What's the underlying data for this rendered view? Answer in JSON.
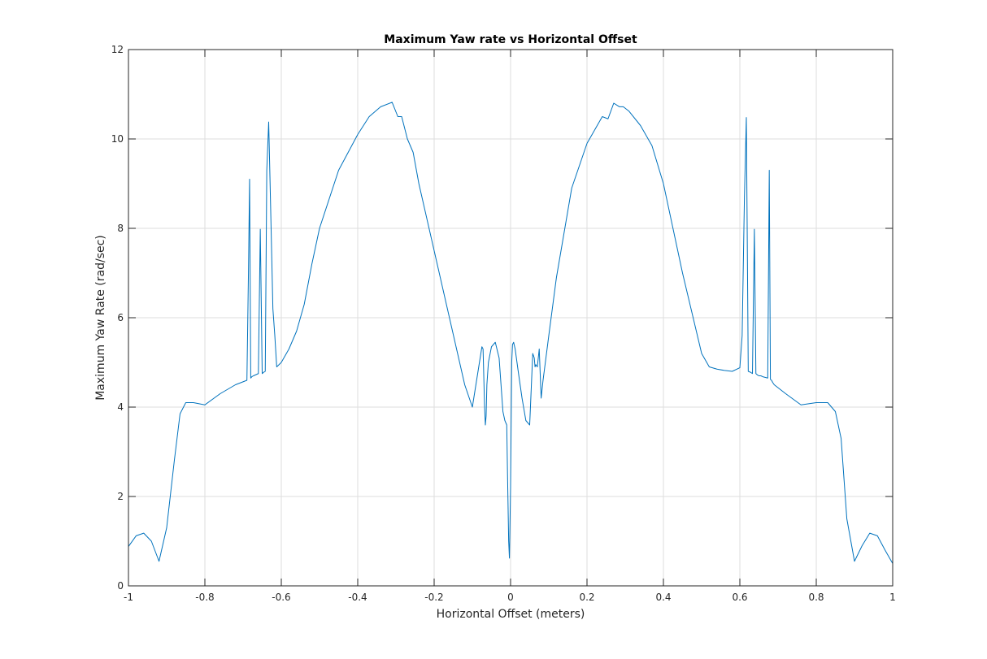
{
  "chart_data": {
    "type": "line",
    "title": "Maximum Yaw rate vs Horizontal Offset",
    "xlabel": "Horizontal Offset (meters)",
    "ylabel": "Maximum Yaw Rate (rad/sec)",
    "xlim": [
      -1,
      1
    ],
    "ylim": [
      0,
      12
    ],
    "xticks": [
      -1,
      -0.8,
      -0.6,
      -0.4,
      -0.2,
      0,
      0.2,
      0.4,
      0.6,
      0.8,
      1
    ],
    "xtick_labels": [
      "-1",
      "-0.8",
      "-0.6",
      "-0.4",
      "-0.2",
      "0",
      "0.2",
      "0.4",
      "0.6",
      "0.8",
      "1"
    ],
    "yticks": [
      0,
      2,
      4,
      6,
      8,
      10,
      12
    ],
    "ytick_labels": [
      "0",
      "2",
      "4",
      "6",
      "8",
      "10",
      "12"
    ],
    "grid": true,
    "line_color": "#0072bd",
    "series": [
      {
        "x": [
          -1.0,
          -0.98,
          -0.96,
          -0.94,
          -0.92,
          -0.9,
          -0.88,
          -0.865,
          -0.85,
          -0.83,
          -0.8,
          -0.76,
          -0.72,
          -0.69,
          -0.686,
          -0.683,
          -0.68,
          -0.677,
          -0.673,
          -0.66,
          -0.655,
          -0.65,
          -0.646,
          -0.642,
          -0.638,
          -0.633,
          -0.628,
          -0.622,
          -0.617,
          -0.612,
          -0.606,
          -0.6,
          -0.58,
          -0.56,
          -0.54,
          -0.52,
          -0.5,
          -0.45,
          -0.4,
          -0.37,
          -0.34,
          -0.31,
          -0.295,
          -0.285,
          -0.27,
          -0.255,
          -0.24,
          -0.2,
          -0.16,
          -0.12,
          -0.1,
          -0.075,
          -0.072,
          -0.068,
          -0.066,
          -0.064,
          -0.062,
          -0.058,
          -0.05,
          -0.04,
          -0.03,
          -0.02,
          -0.015,
          -0.01,
          -0.008,
          -0.005,
          -0.003,
          0.0,
          0.003,
          0.005,
          0.008,
          0.012,
          0.02,
          0.03,
          0.04,
          0.05,
          0.058,
          0.062,
          0.064,
          0.066,
          0.07,
          0.075,
          0.08,
          0.085,
          0.1,
          0.12,
          0.16,
          0.2,
          0.24,
          0.255,
          0.27,
          0.285,
          0.295,
          0.31,
          0.34,
          0.37,
          0.4,
          0.45,
          0.5,
          0.52,
          0.54,
          0.56,
          0.58,
          0.6,
          0.606,
          0.612,
          0.617,
          0.622,
          0.628,
          0.633,
          0.638,
          0.642,
          0.646,
          0.65,
          0.655,
          0.66,
          0.673,
          0.677,
          0.68,
          0.683,
          0.686,
          0.69,
          0.72,
          0.76,
          0.8,
          0.83,
          0.85,
          0.865,
          0.88,
          0.9,
          0.92,
          0.94,
          0.96,
          0.98,
          1.0
        ],
        "y": [
          0.88,
          1.12,
          1.18,
          1.0,
          0.55,
          1.3,
          2.8,
          3.85,
          4.1,
          4.1,
          4.05,
          4.3,
          4.5,
          4.6,
          7.0,
          9.1,
          4.65,
          4.68,
          4.7,
          4.75,
          7.98,
          4.75,
          4.78,
          4.8,
          9.3,
          10.38,
          8.5,
          6.2,
          5.6,
          4.9,
          4.95,
          5.0,
          5.3,
          5.7,
          6.3,
          7.2,
          8.0,
          9.3,
          10.1,
          10.5,
          10.72,
          10.82,
          10.5,
          10.5,
          10.0,
          9.7,
          9.0,
          7.5,
          6.0,
          4.5,
          4.0,
          5.35,
          5.3,
          4.0,
          3.6,
          3.8,
          4.5,
          5.0,
          5.35,
          5.45,
          5.1,
          3.9,
          3.7,
          3.6,
          2.5,
          1.0,
          0.62,
          2.2,
          5.0,
          5.4,
          5.45,
          5.3,
          4.8,
          4.2,
          3.7,
          3.6,
          5.2,
          5.1,
          4.9,
          4.95,
          4.9,
          5.3,
          4.2,
          4.6,
          5.6,
          6.9,
          8.9,
          9.9,
          10.5,
          10.45,
          10.8,
          10.72,
          10.72,
          10.62,
          10.3,
          9.85,
          9.0,
          7.0,
          5.2,
          4.9,
          4.85,
          4.82,
          4.8,
          4.88,
          5.6,
          8.7,
          10.48,
          4.8,
          4.78,
          4.75,
          7.98,
          4.75,
          4.72,
          4.7,
          4.7,
          4.68,
          4.65,
          9.3,
          4.62,
          4.6,
          4.55,
          4.5,
          4.3,
          4.05,
          4.1,
          4.1,
          3.9,
          3.3,
          1.5,
          0.55,
          0.9,
          1.18,
          1.12,
          0.8,
          0.5
        ]
      }
    ]
  }
}
